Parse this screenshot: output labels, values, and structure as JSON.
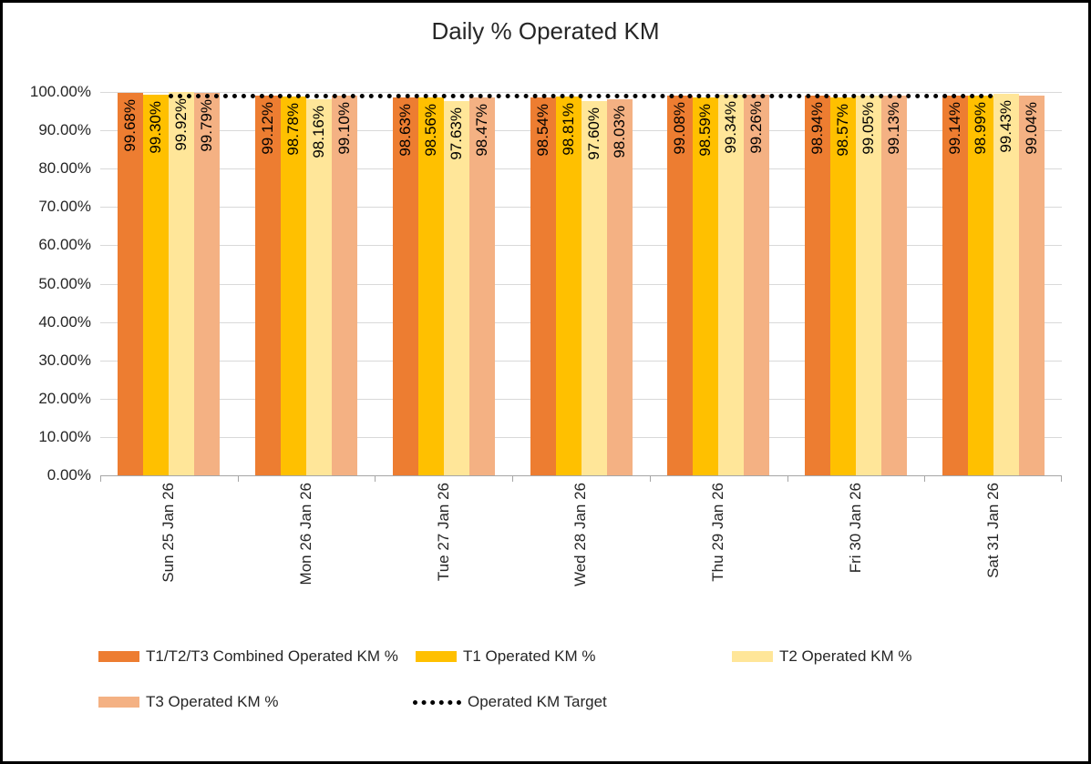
{
  "chart_data": {
    "type": "bar",
    "title": "Daily % Operated KM",
    "categories": [
      "Sun 25 Jan 26",
      "Mon 26 Jan 26",
      "Tue 27 Jan 26",
      "Wed 28 Jan 26",
      "Thu 29 Jan 26",
      "Fri 30 Jan 26",
      "Sat 31 Jan 26"
    ],
    "series": [
      {
        "name": "T1/T2/T3 Combined Operated KM %",
        "color": "#ED7D31",
        "values": [
          99.68,
          99.12,
          98.63,
          98.54,
          99.08,
          98.94,
          99.14
        ]
      },
      {
        "name": "T1 Operated KM %",
        "color": "#FFC000",
        "values": [
          99.3,
          98.78,
          98.56,
          98.81,
          98.59,
          98.57,
          98.99
        ]
      },
      {
        "name": "T2 Operated KM %",
        "color": "#FFE699",
        "values": [
          99.92,
          98.16,
          97.63,
          97.6,
          99.34,
          99.05,
          99.43
        ]
      },
      {
        "name": "T3 Operated KM %",
        "color": "#F4B183",
        "values": [
          99.79,
          99.1,
          98.47,
          98.03,
          99.26,
          99.13,
          99.04
        ]
      }
    ],
    "target_line": {
      "name": "Operated KM Target",
      "value": 99,
      "color": "#000000",
      "style": "dotted"
    },
    "y_axis": {
      "min": 0,
      "max": 100,
      "tick_labels": [
        "100.00%",
        "90.00%",
        "80.00%",
        "70.00%",
        "60.00%",
        "50.00%",
        "40.00%",
        "30.00%",
        "20.00%",
        "10.00%",
        "0.00%"
      ]
    },
    "value_label_format": "0.00%",
    "legend_position": "bottom",
    "grid": true
  },
  "colors": {
    "gridline": "#D9D9D9",
    "axis": "#A6A6A6",
    "text": "#262626",
    "data_label": "#000000",
    "background": "#FFFFFF",
    "frame_border": "#000000"
  }
}
